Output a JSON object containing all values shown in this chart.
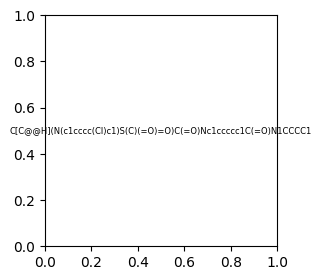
{
  "smiles": "C[C@@H](N(c1cccc(Cl)c1)S(C)(=O)=O)C(=O)Nc1ccccc1C(=O)N1CCCC1",
  "img_size": [
    300,
    300
  ],
  "background_color": "#e8e8e8"
}
